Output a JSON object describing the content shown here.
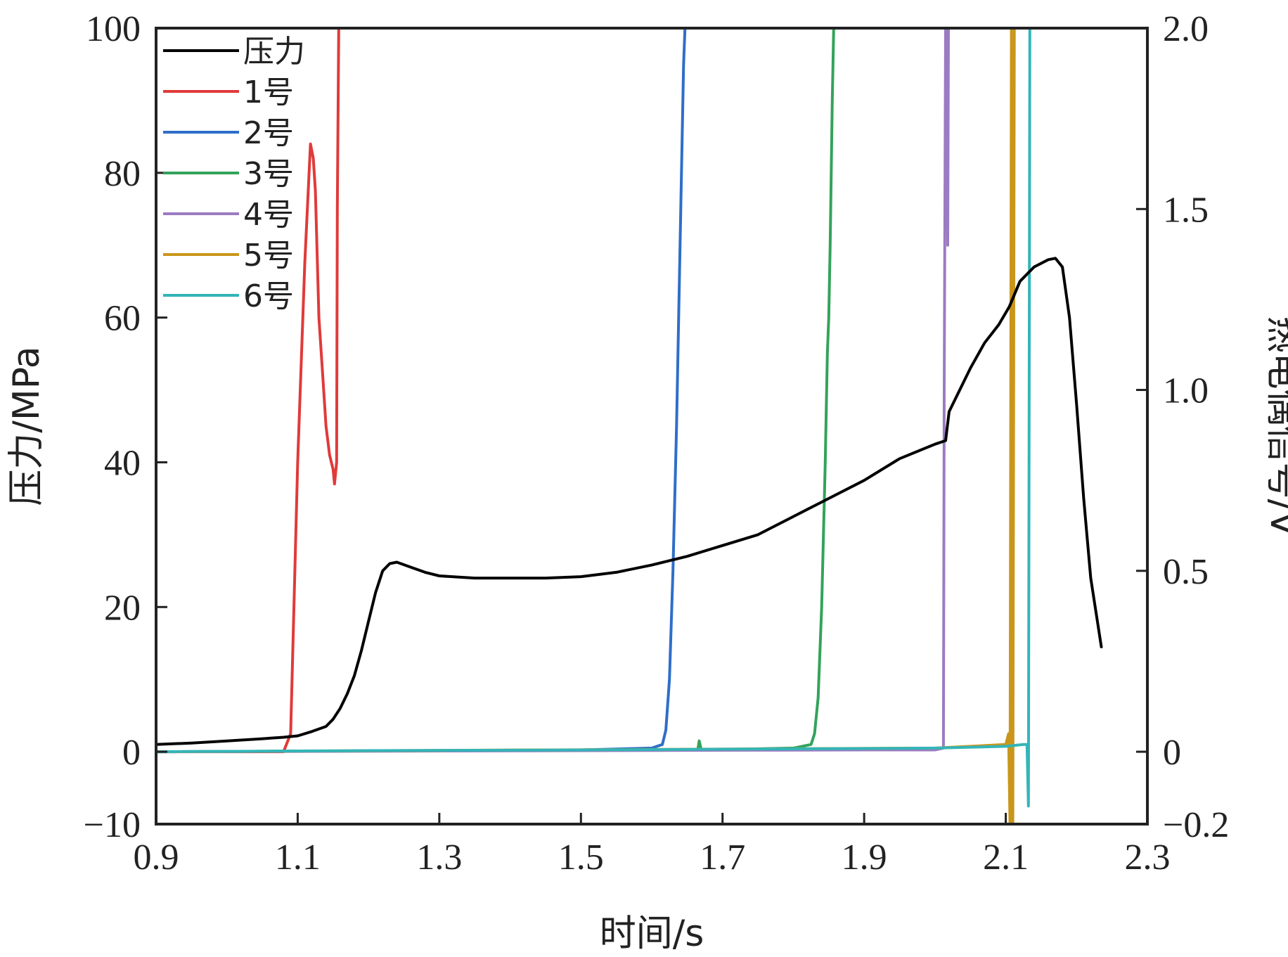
{
  "chart_data": {
    "type": "line",
    "xlabel": "时间/s",
    "ylabel_left": "压力/MPa",
    "ylabel_right": "热电偶信号/V",
    "xlim": [
      0.9,
      2.3
    ],
    "ylim_left": [
      -10,
      100
    ],
    "ylim_right": [
      -0.2,
      2.0
    ],
    "x_ticks": [
      "0.9",
      "1.1",
      "1.3",
      "1.5",
      "1.7",
      "1.9",
      "2.1",
      "2.3"
    ],
    "y_ticks_left": [
      "−10",
      "0",
      "20",
      "40",
      "60",
      "80",
      "100"
    ],
    "y_ticks_right": [
      "−0.2",
      "0",
      "0.5",
      "1.0",
      "1.5",
      "2.0"
    ],
    "grid": false,
    "legend_position": "top-left",
    "series": [
      {
        "name": "压力",
        "axis": "left",
        "color": "#000000",
        "x": [
          0.9,
          0.95,
          1.0,
          1.05,
          1.08,
          1.1,
          1.12,
          1.14,
          1.15,
          1.16,
          1.17,
          1.18,
          1.19,
          1.2,
          1.21,
          1.22,
          1.23,
          1.24,
          1.26,
          1.28,
          1.3,
          1.35,
          1.4,
          1.45,
          1.5,
          1.55,
          1.6,
          1.65,
          1.7,
          1.75,
          1.8,
          1.85,
          1.9,
          1.95,
          2.0,
          2.015,
          2.02,
          2.03,
          2.05,
          2.07,
          2.09,
          2.105,
          2.12,
          2.14,
          2.16,
          2.17,
          2.18,
          2.19,
          2.2,
          2.21,
          2.22,
          2.235
        ],
        "y": [
          1,
          1.2,
          1.5,
          1.8,
          2,
          2.2,
          2.8,
          3.5,
          4.5,
          6,
          8,
          10.5,
          14,
          18,
          22,
          25,
          26,
          26.2,
          25.5,
          24.8,
          24.3,
          24,
          24,
          24,
          24.2,
          24.8,
          25.8,
          27,
          28.5,
          30,
          32.5,
          35,
          37.5,
          40.5,
          42.5,
          43,
          47,
          49,
          53,
          56.5,
          59,
          61.5,
          65,
          67,
          68,
          68.2,
          67,
          60,
          48,
          35,
          24,
          14.5
        ]
      },
      {
        "name": "1号",
        "axis": "right",
        "color": "#e03a3a",
        "x": [
          0.9,
          1.05,
          1.08,
          1.09,
          1.1,
          1.11,
          1.118,
          1.122,
          1.125,
          1.13,
          1.135,
          1.14,
          1.145,
          1.15,
          1.152,
          1.155,
          1.156,
          1.158
        ],
        "y": [
          0,
          0,
          0,
          0.05,
          0.8,
          1.35,
          1.68,
          1.64,
          1.55,
          1.2,
          1.05,
          0.9,
          0.82,
          0.78,
          0.74,
          0.8,
          1.5,
          2.0
        ]
      },
      {
        "name": "2号",
        "axis": "right",
        "color": "#2f6ec9",
        "x": [
          0.9,
          1.5,
          1.6,
          1.615,
          1.62,
          1.625,
          1.63,
          1.635,
          1.64,
          1.645,
          1.647
        ],
        "y": [
          0,
          0.005,
          0.01,
          0.02,
          0.06,
          0.2,
          0.5,
          0.9,
          1.4,
          1.9,
          2.0
        ]
      },
      {
        "name": "3号",
        "axis": "right",
        "color": "#33a35a",
        "x": [
          0.9,
          1.6,
          1.665,
          1.667,
          1.67,
          1.8,
          1.825,
          1.83,
          1.835,
          1.84,
          1.845,
          1.848,
          1.85,
          1.852,
          1.855,
          1.857
        ],
        "y": [
          0,
          0.005,
          0.005,
          0.03,
          0.005,
          0.01,
          0.02,
          0.05,
          0.15,
          0.4,
          0.8,
          1.1,
          1.2,
          1.4,
          1.8,
          2.0
        ]
      },
      {
        "name": "4号",
        "axis": "right",
        "color": "#9b7bc2",
        "x": [
          0.9,
          1.9,
          2.0,
          2.012,
          2.013,
          2.015,
          2.017,
          2.018,
          2.019
        ],
        "y": [
          0,
          0.005,
          0.005,
          0.01,
          1.0,
          2.0,
          2.0,
          1.4,
          2.0
        ]
      },
      {
        "name": "5号",
        "axis": "right",
        "color": "#c9961a",
        "x": [
          0.9,
          2.0,
          2.1,
          2.104,
          2.106,
          2.108,
          2.11,
          2.112
        ],
        "y": [
          0,
          0.01,
          0.02,
          0.05,
          -0.2,
          2.0,
          -0.2,
          2.0
        ]
      },
      {
        "name": "6号",
        "axis": "right",
        "color": "#33b5b8",
        "x": [
          0.9,
          1.2,
          1.5,
          1.8,
          2.0,
          2.1,
          2.125,
          2.13,
          2.132,
          2.134
        ],
        "y": [
          0,
          0.003,
          0.005,
          0.008,
          0.01,
          0.015,
          0.02,
          0.02,
          -0.15,
          2.0
        ]
      }
    ]
  }
}
